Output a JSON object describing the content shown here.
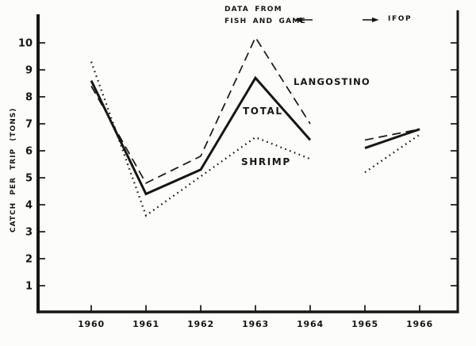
{
  "page": {
    "background": "#fcfcfa",
    "ink": "#161616"
  },
  "annotation": {
    "left_source_line1": "DATA FROM",
    "left_source_line2": "FISH AND GAME",
    "right_source": "IFOP"
  },
  "y_axis": {
    "label": "CATCH PER TRIP (TONS)",
    "tick_labels": [
      "10",
      "9",
      "8",
      "7",
      "6",
      "5",
      "4",
      "3",
      "2",
      "1"
    ],
    "tick_values": [
      10,
      9,
      8,
      7,
      6,
      5,
      4,
      3,
      2,
      1
    ]
  },
  "x_axis": {
    "tick_labels": [
      "1960",
      "1961",
      "1962",
      "1963",
      "1964",
      "1965",
      "1966"
    ]
  },
  "series_labels": {
    "langostino": "LANGOSTINO",
    "total": "TOTAL",
    "shrimp": "SHRIMP"
  },
  "chart_data": {
    "type": "line",
    "title": "",
    "xlabel": "",
    "ylabel": "CATCH PER TRIP (TONS)",
    "x_ticks": [
      1960,
      1961,
      1962,
      1963,
      1964,
      1965,
      1966
    ],
    "y_ticks": [
      1,
      2,
      3,
      4,
      5,
      6,
      7,
      8,
      9,
      10
    ],
    "ylim": [
      0,
      10.6
    ],
    "grid": false,
    "legend": "inline-labels",
    "series": [
      {
        "name": "LANGOSTINO",
        "style": "dashed",
        "segments": [
          {
            "source": "FISH AND GAME",
            "points": [
              [
                1960,
                8.4
              ],
              [
                1961,
                4.8
              ],
              [
                1962,
                5.8
              ],
              [
                1963,
                10.2
              ],
              [
                1964,
                7.0
              ]
            ]
          },
          {
            "source": "IFOP",
            "points": [
              [
                1965,
                6.4
              ],
              [
                1966,
                6.8
              ]
            ]
          }
        ]
      },
      {
        "name": "TOTAL",
        "style": "solid",
        "segments": [
          {
            "source": "FISH AND GAME",
            "points": [
              [
                1960,
                8.6
              ],
              [
                1961,
                4.4
              ],
              [
                1962,
                5.3
              ],
              [
                1963,
                8.7
              ],
              [
                1964,
                6.4
              ]
            ]
          },
          {
            "source": "IFOP",
            "points": [
              [
                1965,
                6.1
              ],
              [
                1966,
                6.8
              ]
            ]
          }
        ]
      },
      {
        "name": "SHRIMP",
        "style": "dotted",
        "segments": [
          {
            "source": "FISH AND GAME",
            "points": [
              [
                1960,
                9.3
              ],
              [
                1961,
                3.6
              ],
              [
                1963,
                6.5
              ],
              [
                1964,
                5.7
              ]
            ]
          },
          {
            "source": "IFOP",
            "points": [
              [
                1965,
                5.2
              ],
              [
                1966,
                6.6
              ]
            ]
          }
        ]
      }
    ],
    "annotations": [
      {
        "text": "DATA FROM FISH AND GAME",
        "applies_to": "1960-1964",
        "arrow": "left"
      },
      {
        "text": "IFOP",
        "applies_to": "1965-1966",
        "arrow": "right"
      }
    ]
  }
}
